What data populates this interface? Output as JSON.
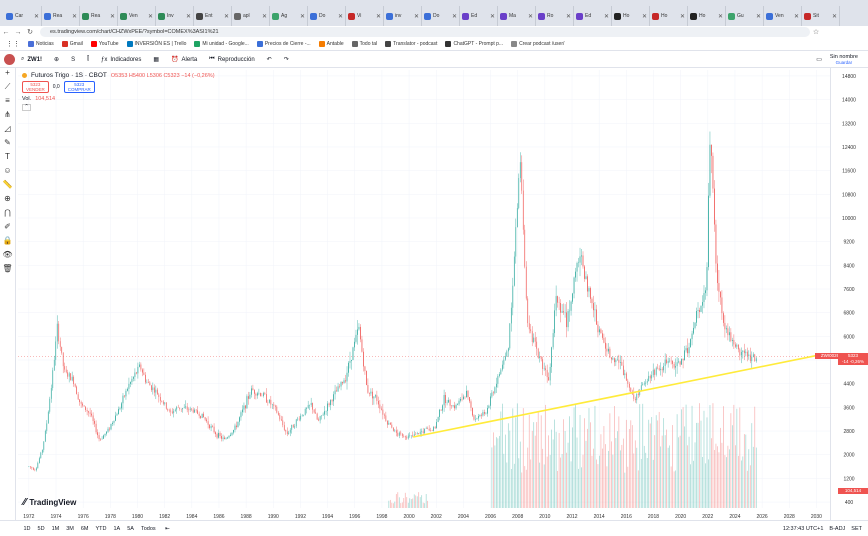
{
  "browser": {
    "tabs": [
      {
        "label": "Car",
        "color": "#3b6fd8"
      },
      {
        "label": "Rea",
        "color": "#3b6fd8"
      },
      {
        "label": "Rea",
        "color": "#2e8b57"
      },
      {
        "label": "Ven",
        "color": "#2e8b57"
      },
      {
        "label": "Inv",
        "color": "#2e8b57"
      },
      {
        "label": "Ent",
        "color": "#444"
      },
      {
        "label": "apl",
        "color": "#666"
      },
      {
        "label": "Ag",
        "color": "#3ca36b"
      },
      {
        "label": "Do",
        "color": "#3b6fd8"
      },
      {
        "label": "Vi",
        "color": "#c62828"
      },
      {
        "label": "inv",
        "color": "#3b6fd8"
      },
      {
        "label": "Do",
        "color": "#3b6fd8"
      },
      {
        "label": "Ed",
        "color": "#6a3fc9"
      },
      {
        "label": "Ma",
        "color": "#6a3fc9"
      },
      {
        "label": "Ro",
        "color": "#6a3fc9"
      },
      {
        "label": "Ed",
        "color": "#6a3fc9"
      },
      {
        "label": "Ho",
        "color": "#222"
      },
      {
        "label": "Ho",
        "color": "#c62828"
      },
      {
        "label": "Ho",
        "color": "#222"
      },
      {
        "label": "Gu",
        "color": "#3ca36b"
      },
      {
        "label": "Ven",
        "color": "#3b6fd8"
      },
      {
        "label": "Sit",
        "color": "#c62828"
      }
    ],
    "url": "es.tradingview.com/chart/CHZWxPEE/?symbol=COMEX%3ASI1%21",
    "bookmarks": [
      {
        "label": "Noticias",
        "color": "#4a6fd8"
      },
      {
        "label": "Gmail",
        "color": "#d93025"
      },
      {
        "label": "YouTube",
        "color": "#ff0000"
      },
      {
        "label": "INVERSIÓN ES | Trello",
        "color": "#0079bf"
      },
      {
        "label": "Mi unidad - Google...",
        "color": "#1fa463"
      },
      {
        "label": "Precios de Cierre -...",
        "color": "#3b6fd8"
      },
      {
        "label": "Antable",
        "color": "#f57c00"
      },
      {
        "label": "Todo tal",
        "color": "#666"
      },
      {
        "label": "Translator - podcast",
        "color": "#444"
      },
      {
        "label": "ChatGPT - Prompt p...",
        "color": "#333"
      },
      {
        "label": "Crear podcast /user/",
        "color": "#888"
      }
    ]
  },
  "toolbar": {
    "symbol": "ZW1!",
    "interval": "S",
    "indicators": "Indicadores",
    "alert": "Alerta",
    "replay": "Reproducción",
    "layout_name": "Sin nombre",
    "layout_status": "Guardar"
  },
  "legend": {
    "title": "Futuros Trigo · 1S · CBOT",
    "ohlc": "O5353 H5400 L5306 C5323 −14 (−0,26%)",
    "sell_price": "5323",
    "sell_label": "VENDER",
    "buy_price": "5323",
    "buy_label": "COMPRAR",
    "spread": "0,0",
    "volume_label": "Vol.",
    "volume_value": "104,514"
  },
  "chart_data": {
    "type": "candlestick",
    "title": "Futuros Trigo · 1S · CBOT",
    "x_ticks": [
      "1972",
      "1974",
      "1976",
      "1978",
      "1980",
      "1982",
      "1984",
      "1986",
      "1988",
      "1990",
      "1992",
      "1994",
      "1996",
      "1998",
      "2000",
      "2002",
      "2004",
      "2006",
      "2008",
      "2010",
      "2012",
      "2014",
      "2016",
      "2018",
      "2020",
      "2022",
      "2024",
      "2026",
      "2028",
      "2030"
    ],
    "y_ticks": [
      400,
      1200,
      2000,
      2800,
      3600,
      4400,
      5200,
      6000,
      6800,
      7600,
      8400,
      9200,
      10000,
      10800,
      11600,
      12400,
      13200,
      14000,
      14800
    ],
    "ylim": [
      200,
      15000
    ],
    "price_path": [
      [
        1972.0,
        1600
      ],
      [
        1972.5,
        1500
      ],
      [
        1973.0,
        2200
      ],
      [
        1973.3,
        3000
      ],
      [
        1973.7,
        4500
      ],
      [
        1974.1,
        6300
      ],
      [
        1974.6,
        4800
      ],
      [
        1975.3,
        4500
      ],
      [
        1975.8,
        3700
      ],
      [
        1976.5,
        3400
      ],
      [
        1977.2,
        2500
      ],
      [
        1977.8,
        2800
      ],
      [
        1978.7,
        3600
      ],
      [
        1979.3,
        4300
      ],
      [
        1980.2,
        5000
      ],
      [
        1980.6,
        4500
      ],
      [
        1981.4,
        4100
      ],
      [
        1982.4,
        3400
      ],
      [
        1983.0,
        3600
      ],
      [
        1984.1,
        3500
      ],
      [
        1984.8,
        3300
      ],
      [
        1985.8,
        2700
      ],
      [
        1986.4,
        2500
      ],
      [
        1987.2,
        2900
      ],
      [
        1988.4,
        4200
      ],
      [
        1989.3,
        4000
      ],
      [
        1990.2,
        3500
      ],
      [
        1991.0,
        2700
      ],
      [
        1991.8,
        3200
      ],
      [
        1992.8,
        3700
      ],
      [
        1993.3,
        3100
      ],
      [
        1994.2,
        3800
      ],
      [
        1995.3,
        4600
      ],
      [
        1996.3,
        6300
      ],
      [
        1996.9,
        4200
      ],
      [
        1997.6,
        3900
      ],
      [
        1998.4,
        3100
      ],
      [
        1999.1,
        2700
      ],
      [
        2000.2,
        2600
      ],
      [
        2001.0,
        2800
      ],
      [
        2001.9,
        2900
      ],
      [
        2002.6,
        3900
      ],
      [
        2003.4,
        3600
      ],
      [
        2004.2,
        4100
      ],
      [
        2004.8,
        3200
      ],
      [
        2005.6,
        3400
      ],
      [
        2006.4,
        4400
      ],
      [
        2007.3,
        5600
      ],
      [
        2007.8,
        9000
      ],
      [
        2008.2,
        12200
      ],
      [
        2008.7,
        6400
      ],
      [
        2009.5,
        5400
      ],
      [
        2010.3,
        4600
      ],
      [
        2010.8,
        7400
      ],
      [
        2011.6,
        6500
      ],
      [
        2012.6,
        8900
      ],
      [
        2013.2,
        7500
      ],
      [
        2014.0,
        6200
      ],
      [
        2014.7,
        5400
      ],
      [
        2015.4,
        5200
      ],
      [
        2016.6,
        3900
      ],
      [
        2017.4,
        4500
      ],
      [
        2018.2,
        4900
      ],
      [
        2019.0,
        5100
      ],
      [
        2019.8,
        5000
      ],
      [
        2020.7,
        5800
      ],
      [
        2021.3,
        6900
      ],
      [
        2021.9,
        7700
      ],
      [
        2022.2,
        13200
      ],
      [
        2022.6,
        8300
      ],
      [
        2023.2,
        6500
      ],
      [
        2023.8,
        5800
      ],
      [
        2024.4,
        5500
      ],
      [
        2025.2,
        5300
      ],
      [
        2025.6,
        5323
      ]
    ],
    "volume_start_x": 1998.5,
    "trendline": [
      [
        2000.3,
        2600
      ],
      [
        2030.0,
        5350
      ]
    ],
    "last_price": 5323,
    "last_price_label": "ZW!0026",
    "last_change_label": "-14 -0,26%"
  },
  "bottom": {
    "ranges": [
      "1D",
      "5D",
      "1M",
      "3M",
      "6M",
      "YTD",
      "1A",
      "5A",
      "Todos"
    ],
    "time": "12:37:43 UTC+1",
    "adj": "B-ADJ",
    "session": "SET"
  },
  "watermark": "TradingView",
  "colors": {
    "up": "#26a69a",
    "down": "#ef5350",
    "trend": "#ffeb3b"
  }
}
